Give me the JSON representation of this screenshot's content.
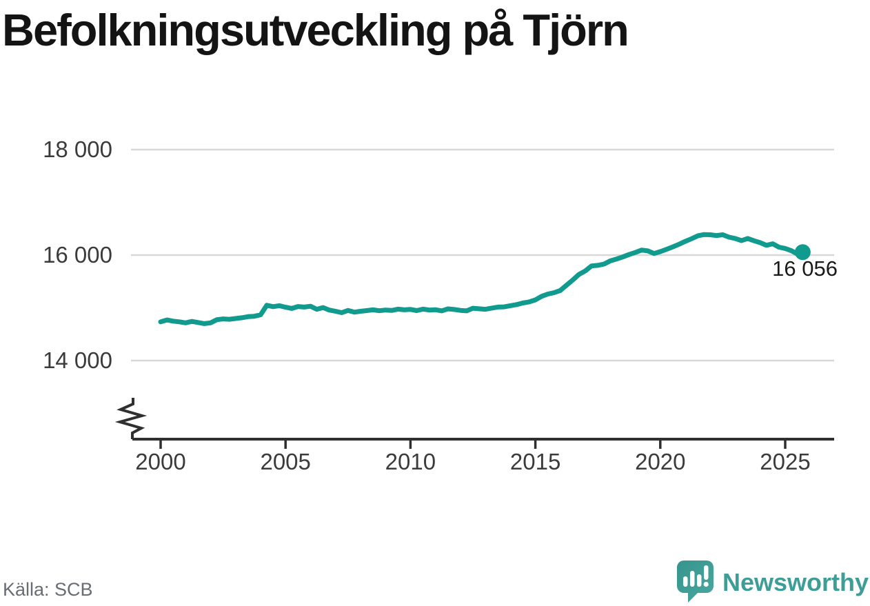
{
  "header": {
    "title": "Befolkningsutveckling på Tjörn"
  },
  "footer": {
    "source_label": "Källa: SCB",
    "brand_name": "Newsworthy",
    "brand_icon": "newsworthy-speech-bubble-bar-chart-icon"
  },
  "colors": {
    "series_line": "#119a8e",
    "axis": "#2f2f2f",
    "gridline": "#d8d8d8",
    "tick_text": "#3b3b3b",
    "title_text": "#141414",
    "source_text": "#696c72",
    "brand_teal": "#3f9d97",
    "background": "#ffffff"
  },
  "chart_data": {
    "type": "line",
    "title": "Befolkningsutveckling på Tjörn",
    "source": "SCB",
    "legend": "none",
    "grid": "horizontal-only",
    "y_axis_break": true,
    "xlim": [
      2000,
      2025.7
    ],
    "ylim_displayed": [
      14000,
      18000
    ],
    "x_ticks": [
      2000,
      2005,
      2010,
      2015,
      2020,
      2025
    ],
    "x_tick_labels": [
      "2000",
      "2005",
      "2010",
      "2015",
      "2020",
      "2025"
    ],
    "y_ticks": [
      18000,
      16000,
      14000
    ],
    "y_tick_labels": [
      "18 000",
      "16 000",
      "14 000"
    ],
    "end_label": "16 056",
    "last_value": 16056,
    "series": [
      {
        "points": [
          [
            2000.0,
            14735
          ],
          [
            2000.25,
            14770
          ],
          [
            2000.5,
            14748
          ],
          [
            2000.75,
            14735
          ],
          [
            2001.0,
            14715
          ],
          [
            2001.25,
            14742
          ],
          [
            2001.5,
            14722
          ],
          [
            2001.75,
            14700
          ],
          [
            2002.0,
            14715
          ],
          [
            2002.25,
            14775
          ],
          [
            2002.5,
            14790
          ],
          [
            2002.75,
            14783
          ],
          [
            2003.0,
            14798
          ],
          [
            2003.25,
            14812
          ],
          [
            2003.5,
            14833
          ],
          [
            2003.75,
            14840
          ],
          [
            2004.0,
            14868
          ],
          [
            2004.25,
            15048
          ],
          [
            2004.5,
            15022
          ],
          [
            2004.75,
            15040
          ],
          [
            2005.0,
            15012
          ],
          [
            2005.25,
            14988
          ],
          [
            2005.5,
            15025
          ],
          [
            2005.75,
            15015
          ],
          [
            2006.0,
            15030
          ],
          [
            2006.25,
            14972
          ],
          [
            2006.5,
            15005
          ],
          [
            2006.75,
            14958
          ],
          [
            2007.0,
            14935
          ],
          [
            2007.25,
            14908
          ],
          [
            2007.5,
            14950
          ],
          [
            2007.75,
            14918
          ],
          [
            2008.0,
            14935
          ],
          [
            2008.25,
            14948
          ],
          [
            2008.5,
            14962
          ],
          [
            2008.75,
            14945
          ],
          [
            2009.0,
            14958
          ],
          [
            2009.25,
            14950
          ],
          [
            2009.5,
            14975
          ],
          [
            2009.75,
            14962
          ],
          [
            2010.0,
            14970
          ],
          [
            2010.25,
            14948
          ],
          [
            2010.5,
            14975
          ],
          [
            2010.75,
            14958
          ],
          [
            2011.0,
            14965
          ],
          [
            2011.25,
            14942
          ],
          [
            2011.5,
            14980
          ],
          [
            2011.75,
            14968
          ],
          [
            2012.0,
            14952
          ],
          [
            2012.25,
            14942
          ],
          [
            2012.5,
            14992
          ],
          [
            2012.75,
            14982
          ],
          [
            2013.0,
            14972
          ],
          [
            2013.25,
            14995
          ],
          [
            2013.5,
            15015
          ],
          [
            2013.75,
            15018
          ],
          [
            2014.0,
            15040
          ],
          [
            2014.25,
            15062
          ],
          [
            2014.5,
            15092
          ],
          [
            2014.75,
            15112
          ],
          [
            2015.0,
            15150
          ],
          [
            2015.25,
            15218
          ],
          [
            2015.5,
            15262
          ],
          [
            2015.75,
            15288
          ],
          [
            2016.0,
            15330
          ],
          [
            2016.25,
            15430
          ],
          [
            2016.5,
            15530
          ],
          [
            2016.75,
            15635
          ],
          [
            2017.0,
            15700
          ],
          [
            2017.25,
            15795
          ],
          [
            2017.5,
            15805
          ],
          [
            2017.75,
            15830
          ],
          [
            2018.0,
            15890
          ],
          [
            2018.25,
            15925
          ],
          [
            2018.5,
            15965
          ],
          [
            2018.75,
            16010
          ],
          [
            2019.0,
            16050
          ],
          [
            2019.25,
            16095
          ],
          [
            2019.5,
            16080
          ],
          [
            2019.75,
            16030
          ],
          [
            2020.0,
            16065
          ],
          [
            2020.25,
            16110
          ],
          [
            2020.5,
            16155
          ],
          [
            2020.75,
            16205
          ],
          [
            2021.0,
            16260
          ],
          [
            2021.25,
            16310
          ],
          [
            2021.5,
            16365
          ],
          [
            2021.75,
            16390
          ],
          [
            2022.0,
            16385
          ],
          [
            2022.25,
            16370
          ],
          [
            2022.5,
            16385
          ],
          [
            2022.75,
            16340
          ],
          [
            2023.0,
            16315
          ],
          [
            2023.25,
            16275
          ],
          [
            2023.5,
            16315
          ],
          [
            2023.75,
            16272
          ],
          [
            2024.0,
            16235
          ],
          [
            2024.25,
            16185
          ],
          [
            2024.5,
            16215
          ],
          [
            2024.75,
            16150
          ],
          [
            2025.0,
            16125
          ],
          [
            2025.25,
            16082
          ],
          [
            2025.45,
            16030
          ],
          [
            2025.6,
            15995
          ],
          [
            2025.7,
            16056
          ]
        ]
      }
    ]
  }
}
